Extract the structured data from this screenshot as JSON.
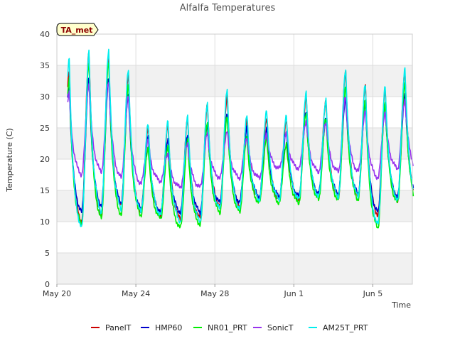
{
  "chart_data": {
    "type": "line",
    "title": "Alfalfa Temperatures",
    "xlabel": "Time",
    "ylabel": "Temperature (C)",
    "badge": "TA_met",
    "ylim": [
      0,
      40
    ],
    "yticks": [
      0,
      5,
      10,
      15,
      20,
      25,
      30,
      35,
      40
    ],
    "xlim": [
      "2023-05-20",
      "2023-06-07"
    ],
    "xticks": [
      {
        "date": "2023-05-20",
        "label": "May 20"
      },
      {
        "date": "2023-05-24",
        "label": "May 24"
      },
      {
        "date": "2023-05-28",
        "label": "May 28"
      },
      {
        "date": "2023-06-01",
        "label": "Jun 1"
      },
      {
        "date": "2023-06-05",
        "label": "Jun 5"
      }
    ],
    "grid": true,
    "legend_position": "bottom",
    "x": [
      "2023-05-20",
      "2023-05-21",
      "2023-05-22",
      "2023-05-23",
      "2023-05-24",
      "2023-05-25",
      "2023-05-26",
      "2023-05-27",
      "2023-05-28",
      "2023-05-29",
      "2023-05-30",
      "2023-05-31",
      "2023-06-01",
      "2023-06-02",
      "2023-06-03",
      "2023-06-04",
      "2023-06-05",
      "2023-06-06"
    ],
    "series": [
      {
        "name": "PanelT",
        "color": "#cc0000",
        "daily_min": [
          10.5,
          10.0,
          11.0,
          12.5,
          11.5,
          11.0,
          10.5,
          10.5,
          12.5,
          12.5,
          13.5,
          13.5,
          13.5,
          14.0,
          14.0,
          14.0,
          11.0,
          13.5
        ],
        "daily_max": [
          34.0,
          37.2,
          36.5,
          33.5,
          25.0,
          25.5,
          26.5,
          28.5,
          30.0,
          26.5,
          26.5,
          26.0,
          30.0,
          29.5,
          34.0,
          31.5,
          31.0,
          34.0
        ]
      },
      {
        "name": "HMP60",
        "color": "#0000cc",
        "daily_min": [
          12.0,
          11.5,
          12.5,
          13.0,
          12.0,
          11.5,
          11.5,
          11.5,
          13.0,
          13.0,
          14.0,
          14.0,
          14.0,
          14.5,
          14.5,
          14.5,
          11.5,
          14.0
        ],
        "daily_max": [
          31.5,
          33.0,
          33.0,
          30.5,
          23.5,
          23.0,
          24.0,
          25.5,
          27.0,
          25.0,
          25.0,
          24.5,
          27.5,
          26.5,
          30.0,
          29.0,
          28.5,
          30.5
        ]
      },
      {
        "name": "NR01_PRT",
        "color": "#00ee00",
        "daily_min": [
          8.5,
          9.5,
          10.5,
          11.0,
          11.0,
          10.5,
          9.0,
          9.5,
          11.5,
          11.5,
          13.0,
          13.0,
          13.0,
          13.5,
          13.5,
          13.5,
          9.0,
          13.0
        ],
        "daily_max": [
          33.0,
          35.5,
          35.5,
          32.0,
          22.0,
          22.0,
          23.0,
          26.0,
          27.0,
          23.5,
          23.5,
          22.5,
          27.5,
          26.5,
          31.5,
          29.5,
          29.0,
          32.0
        ]
      },
      {
        "name": "SonicT",
        "color": "#9933ee",
        "daily_min": [
          17.5,
          17.5,
          18.0,
          17.0,
          16.0,
          16.5,
          15.5,
          15.5,
          17.0,
          17.0,
          17.0,
          18.5,
          18.5,
          18.0,
          18.0,
          18.0,
          17.0,
          18.5
        ],
        "daily_max": [
          30.5,
          32.0,
          32.5,
          30.0,
          23.0,
          21.0,
          22.5,
          24.0,
          24.5,
          23.5,
          24.0,
          24.0,
          26.0,
          26.0,
          30.0,
          27.5,
          27.5,
          29.5
        ]
      },
      {
        "name": "AM25T_PRT",
        "color": "#00eeee",
        "daily_min": [
          9.5,
          9.0,
          11.5,
          12.0,
          11.5,
          11.0,
          10.0,
          10.0,
          12.0,
          12.0,
          13.5,
          13.5,
          13.5,
          14.0,
          14.0,
          14.0,
          9.5,
          13.5
        ],
        "daily_max": [
          36.0,
          37.0,
          37.5,
          34.5,
          25.5,
          26.0,
          27.0,
          29.0,
          31.0,
          27.0,
          28.0,
          27.0,
          30.5,
          29.5,
          34.5,
          32.0,
          31.5,
          34.5
        ]
      }
    ]
  }
}
